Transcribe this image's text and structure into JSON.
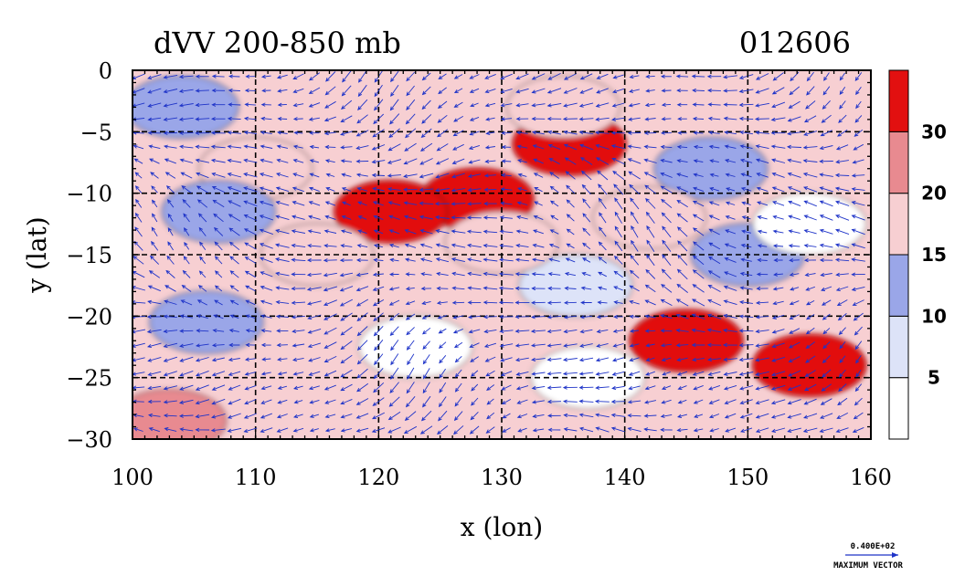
{
  "chart_data": {
    "type": "heatmap",
    "title": "dVV 200-850 mb",
    "title_right": "012606",
    "xlabel": "x (lon)",
    "ylabel": "y (lat)",
    "xlim": [
      100,
      160
    ],
    "ylim": [
      -30,
      0
    ],
    "x_ticks": [
      "100",
      "110",
      "120",
      "130",
      "140",
      "150",
      "160"
    ],
    "y_ticks": [
      "0",
      "−5",
      "−10",
      "−15",
      "−20",
      "−25",
      "−30"
    ],
    "x_tick_values": [
      100,
      110,
      120,
      130,
      140,
      150,
      160
    ],
    "y_tick_values": [
      0,
      -5,
      -10,
      -15,
      -20,
      -25,
      -30
    ],
    "grid": true,
    "legend_position": "right colorbar",
    "colorbar": {
      "levels": [
        0,
        5,
        10,
        15,
        20,
        30,
        40
      ],
      "labels": [
        "5",
        "10",
        "15",
        "20",
        "30"
      ],
      "label_values": [
        5,
        10,
        15,
        20,
        30
      ],
      "colors": [
        "#ffffff",
        "#dde3f8",
        "#9aa6e8",
        "#f7cfd2",
        "#e88a90",
        "#e21010"
      ]
    },
    "vector_field": {
      "color": "#1e33c8",
      "reference_value": "0.400E+02",
      "reference_label": "MAXIMUM VECTOR"
    },
    "field_features": [
      {
        "lon": 128,
        "lat": -10.5,
        "value": 32
      },
      {
        "lon": 121,
        "lat": -11.5,
        "value": 32
      },
      {
        "lon": 135.5,
        "lat": -6,
        "value": 32
      },
      {
        "lon": 155,
        "lat": -24,
        "value": 34
      },
      {
        "lon": 145,
        "lat": -22,
        "value": 30
      },
      {
        "lon": 110,
        "lat": -8,
        "value": 18
      },
      {
        "lon": 135,
        "lat": -3,
        "value": 18
      },
      {
        "lon": 115,
        "lat": -15,
        "value": 18
      },
      {
        "lon": 103,
        "lat": -28.5,
        "value": 25
      },
      {
        "lon": 150,
        "lat": -15,
        "value": 13
      },
      {
        "lon": 155,
        "lat": -12.5,
        "value": 2
      },
      {
        "lon": 123,
        "lat": -22.5,
        "value": 3
      },
      {
        "lon": 137,
        "lat": -25,
        "value": 4
      },
      {
        "lon": 136,
        "lat": -17.5,
        "value": 6
      },
      {
        "lon": 106,
        "lat": -20.5,
        "value": 12
      },
      {
        "lon": 107,
        "lat": -11.5,
        "value": 12
      },
      {
        "lon": 104,
        "lat": -3,
        "value": 11
      },
      {
        "lon": 147,
        "lat": -8,
        "value": 12
      },
      {
        "lon": 130,
        "lat": -14,
        "value": 18
      },
      {
        "lon": 142,
        "lat": -12,
        "value": 18
      }
    ]
  }
}
